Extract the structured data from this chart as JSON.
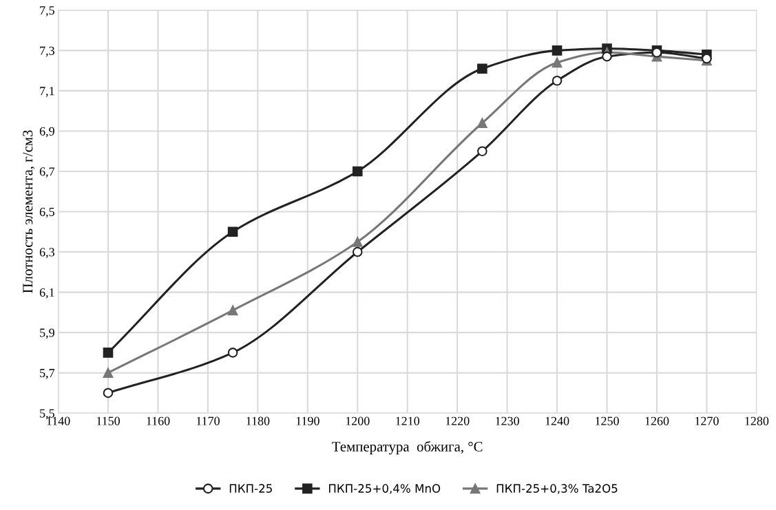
{
  "chart_data": {
    "type": "line",
    "xlabel": "Температура  обжига, °C",
    "ylabel": "Плотность элемента, г/см3",
    "xlim": [
      1140,
      1280
    ],
    "xticks": [
      1140,
      1150,
      1160,
      1170,
      1180,
      1190,
      1200,
      1210,
      1220,
      1230,
      1240,
      1250,
      1260,
      1270,
      1280
    ],
    "ylim": [
      5.5,
      7.5
    ],
    "yticks": [
      {
        "value": 5.5,
        "label": "5,5"
      },
      {
        "value": 5.7,
        "label": "5,7"
      },
      {
        "value": 5.9,
        "label": "5,9"
      },
      {
        "value": 6.1,
        "label": "6,1"
      },
      {
        "value": 6.3,
        "label": "6,3"
      },
      {
        "value": 6.5,
        "label": "6,5"
      },
      {
        "value": 6.7,
        "label": "6,7"
      },
      {
        "value": 6.9,
        "label": "6,9"
      },
      {
        "value": 7.1,
        "label": "7,1"
      },
      {
        "value": 7.3,
        "label": "7,3"
      },
      {
        "value": 7.5,
        "label": "7,5"
      }
    ],
    "x": [
      1150,
      1175,
      1200,
      1225,
      1240,
      1250,
      1260,
      1270
    ],
    "grid": true,
    "legend": "bottom",
    "line_style": "solid",
    "series": [
      {
        "name": "ПКП-25",
        "color": "#222222",
        "marker": "circle",
        "values": [
          5.6,
          5.8,
          6.3,
          6.8,
          7.15,
          7.27,
          7.29,
          7.26
        ]
      },
      {
        "name": "ПКП-25+0,4% MnO",
        "color": "#222222",
        "marker": "square",
        "values": [
          5.8,
          6.4,
          6.7,
          7.21,
          7.3,
          7.31,
          7.3,
          7.28
        ]
      },
      {
        "name": "ПКП-25+0,3% Ta2O5",
        "color": "#777777",
        "marker": "triangle",
        "values": [
          5.7,
          6.01,
          6.35,
          6.94,
          7.24,
          7.29,
          7.27,
          7.25
        ]
      }
    ]
  }
}
